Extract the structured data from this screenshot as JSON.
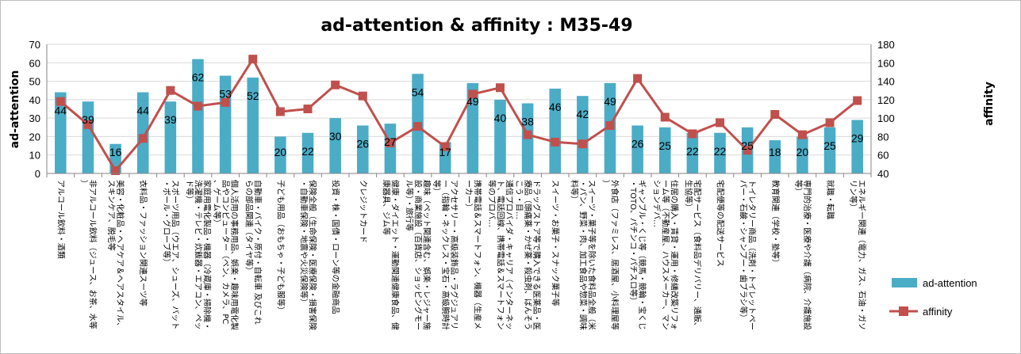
{
  "chart_data": {
    "type": "bar+line",
    "title": "ad-attention & affinity : M35-49",
    "y_left_label": "ad-attention",
    "y_right_label": "affinity",
    "y_left_range": [
      0,
      70
    ],
    "y_left_ticks": [
      "0",
      "10",
      "20",
      "30",
      "40",
      "50",
      "60",
      "70"
    ],
    "y_right_range": [
      40,
      180
    ],
    "y_right_ticks": [
      "40",
      "60",
      "80",
      "100",
      "120",
      "140",
      "160",
      "180"
    ],
    "grid": true,
    "legend_position": "right",
    "colors": {
      "bar": "#4bacc6",
      "line": "#c0504d"
    },
    "categories": [
      "アルコール飲料・酒類",
      "非アルコール飲料（ジュース、お茶、水等）",
      "美容・化粧品・ヘアケア＆ヘアスタイル、スキンケア、脱毛等",
      "衣料品・ファッション関連スーツ等",
      "スポーツ用品（ウエア、シューズ、バット・ボール・グローブ等）",
      "家庭用電化製品・機器（冷蔵庫・掃除機・洗濯機・テレビ・炊飯器・エアコン、ペッド等）",
      "個人活用の事務用品、娯楽・趣味用電化製品やコンピューター（ペン、カメラ、PC、ゲーム等）",
      "自動車・バイク・原付・自転車 及びこれらの部品関連（タイヤ等）",
      "子ども用品（おもちゃ・子ども服等）",
      "保険全般（生命保険・医療保険・損害保険・自動車保険・地震や火災保険等）",
      "投資・株・国債・ローン等の金融商品",
      "クレジットカード",
      "健康・ダイエット・運動関連健康食品、健康器具、ジム等",
      "趣味（ペット関連含む、娯楽・レジャー施設・商業施設（百貨店、ショッピングモール等）・旅行等",
      "アクセサリー・高級装飾品・ラグジュアリー（指輪・ネックレス・宝石・高級腕時計等）",
      "携帯電話＆スマートフォン、機器（生産メーカー）",
      "通信プロバイダ・キャリア（インターネット、電話回線、携帯電話＆スマートフォン等のプロバ…",
      "ドラッグストア等で購入できる医薬品・医療品（頭痛薬・かぜ薬・殺虫剤、ばんそうこう・目…",
      "スイーツ・お菓子・スナック菓子等",
      "スイーツ・菓子等を除いた食料品全般（米・パン、野菜・肉、加工食品や惣菜・調味料等）",
      "外食店（ファミレス、居酒屋、小料理屋等）",
      "ギャンブル・くじ等（競馬・競輪・宝くじ・TOTO、パチンコ・パチスロ等）",
      "住居の購入・賃貸・運用・修繕改築リフォーム等（不動産屋、ハウスメーカー、マンションデバ…",
      "宅配サービス（食料品デリバリー、通販、生協等）",
      "宅配便等の配送サービス",
      "トイレタリー商品（洗剤・トイレットペーパー・石鹸・シャンプー・歯ブラシ等）",
      "教育関連（学校・塾等）",
      "専門的治療・医療や介護（病院、介護施設等）",
      "就職・転職",
      "エネルギー関連（電力、ガス、石油・ガソリン等）"
    ],
    "series": [
      {
        "name": "ad-attention",
        "type": "bar",
        "axis": "left",
        "values": [
          44,
          39,
          16,
          44,
          39,
          62,
          53,
          52,
          20,
          22,
          30,
          26,
          27,
          54,
          17,
          49,
          40,
          38,
          46,
          42,
          49,
          26,
          25,
          22,
          22,
          25,
          18,
          20,
          25,
          29
        ],
        "data_labels": [
          "44",
          "39",
          "16",
          "44",
          "39",
          "62",
          "53",
          "52",
          "20",
          "22",
          "30",
          "26",
          "27",
          "54",
          "17",
          "49",
          "40",
          "38",
          "46",
          "42",
          "49",
          "26",
          "25",
          "22",
          "22",
          "25",
          "18",
          "20",
          "25",
          "29"
        ]
      },
      {
        "name": "affinity",
        "type": "line",
        "axis": "right",
        "values": [
          118,
          93,
          43,
          78,
          130,
          113,
          117,
          164,
          107,
          110,
          136,
          124,
          73,
          91,
          69,
          126,
          133,
          82,
          74,
          72,
          92,
          143,
          101,
          83,
          95,
          65,
          104,
          82,
          95,
          119
        ]
      }
    ]
  }
}
